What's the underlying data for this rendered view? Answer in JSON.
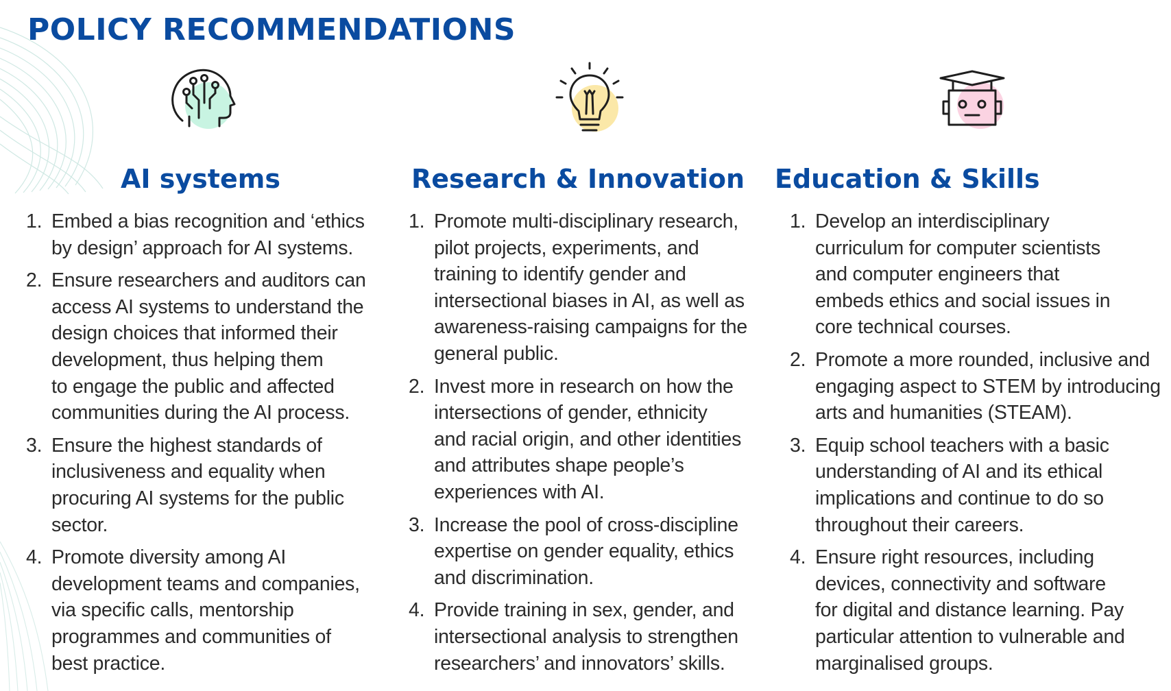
{
  "page": {
    "title": "POLICY RECOMMENDATIONS"
  },
  "columns": [
    {
      "id": "ai",
      "title": "AI systems",
      "icon": "ai-head-icon",
      "accent": "#c8f4e2",
      "items": [
        {
          "num": "1.",
          "lines": [
            "Embed a bias recognition and ‘ethics",
            "by design’ approach for AI systems."
          ]
        },
        {
          "num": "2.",
          "lines": [
            "Ensure researchers and auditors can",
            "access AI systems to understand the",
            "design choices that informed their",
            "development, thus helping them",
            "to engage the public and affected",
            "communities during the AI process."
          ]
        },
        {
          "num": "3.",
          "lines": [
            "Ensure the highest standards of",
            "inclusiveness and equality when",
            "procuring AI systems for the public",
            "sector."
          ]
        },
        {
          "num": "4.",
          "lines": [
            "Promote diversity among AI",
            "development teams and companies,",
            "via specific calls, mentorship",
            "programmes and communities of",
            "best practice."
          ]
        }
      ]
    },
    {
      "id": "ri",
      "title": "Research & Innovation",
      "icon": "lightbulb-icon",
      "accent": "#fbe8a8",
      "items": [
        {
          "num": "1.",
          "lines": [
            "Promote multi-disciplinary research,",
            "pilot projects, experiments, and",
            "training to identify gender and",
            "intersectional biases in AI, as well as",
            "awareness-raising campaigns for the",
            "general public."
          ]
        },
        {
          "num": "2.",
          "lines": [
            "Invest more in research on how the",
            "intersections of gender, ethnicity",
            "and racial origin, and other identities",
            "and attributes shape people’s",
            "experiences with AI."
          ]
        },
        {
          "num": "3.",
          "lines": [
            "Increase the pool of cross-discipline",
            "expertise on gender equality, ethics",
            "and discrimination."
          ]
        },
        {
          "num": "4.",
          "lines": [
            "Provide training in sex, gender, and",
            "intersectional analysis to strengthen",
            "researchers’ and innovators’ skills."
          ]
        }
      ]
    },
    {
      "id": "es",
      "title": "Education & Skills",
      "icon": "graduate-robot-icon",
      "accent": "#fbd3e2",
      "items": [
        {
          "num": "1.",
          "lines": [
            "Develop an interdisciplinary",
            "curriculum for computer scientists",
            "and computer engineers that",
            "embeds ethics and social issues in",
            "core technical courses."
          ]
        },
        {
          "num": "2.",
          "lines": [
            "Promote a more rounded, inclusive and",
            "engaging aspect to STEM by introducing",
            "arts and humanities (STEAM)."
          ]
        },
        {
          "num": "3.",
          "lines": [
            "Equip school teachers with a basic",
            "understanding of AI and its ethical",
            "implications and continue to do so",
            "throughout their careers."
          ]
        },
        {
          "num": "4.",
          "lines": [
            "Ensure right resources, including",
            "devices, connectivity and software",
            "for digital and distance learning. Pay",
            "particular attention to vulnerable and",
            "marginalised groups."
          ]
        }
      ]
    }
  ]
}
